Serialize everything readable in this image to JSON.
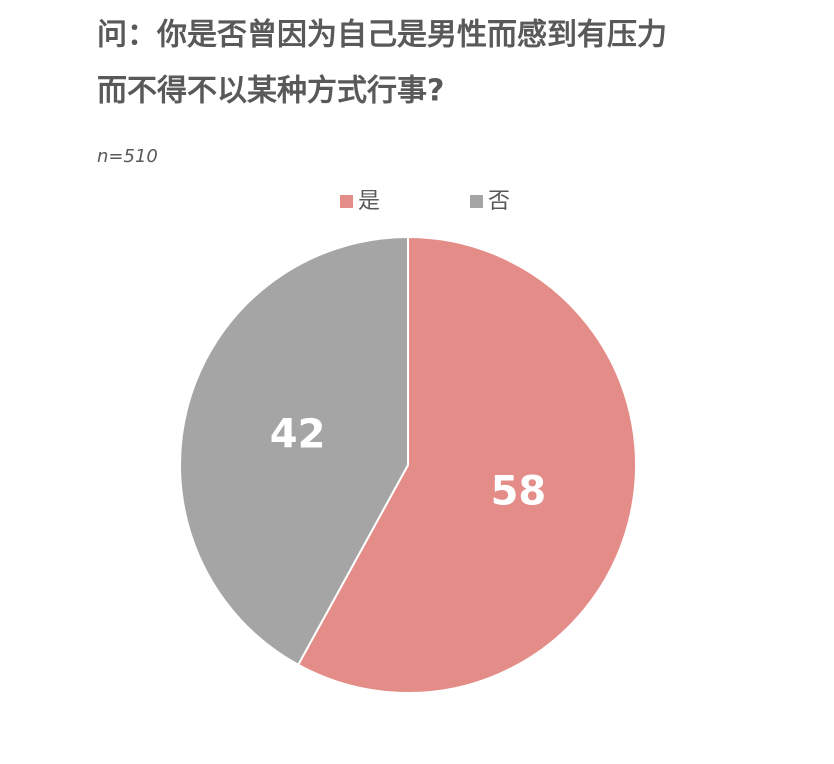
{
  "chart_data": {
    "type": "pie",
    "title": [
      "问：你是否曾因为自己是男性而感到有压力",
      "而不得不以某种方式行事?"
    ],
    "subtitle": "n=510",
    "categories": [
      "是",
      "否"
    ],
    "values": [
      58,
      42
    ],
    "colors": [
      "#e48c87",
      "#a5a5a5"
    ],
    "legend": "top"
  }
}
